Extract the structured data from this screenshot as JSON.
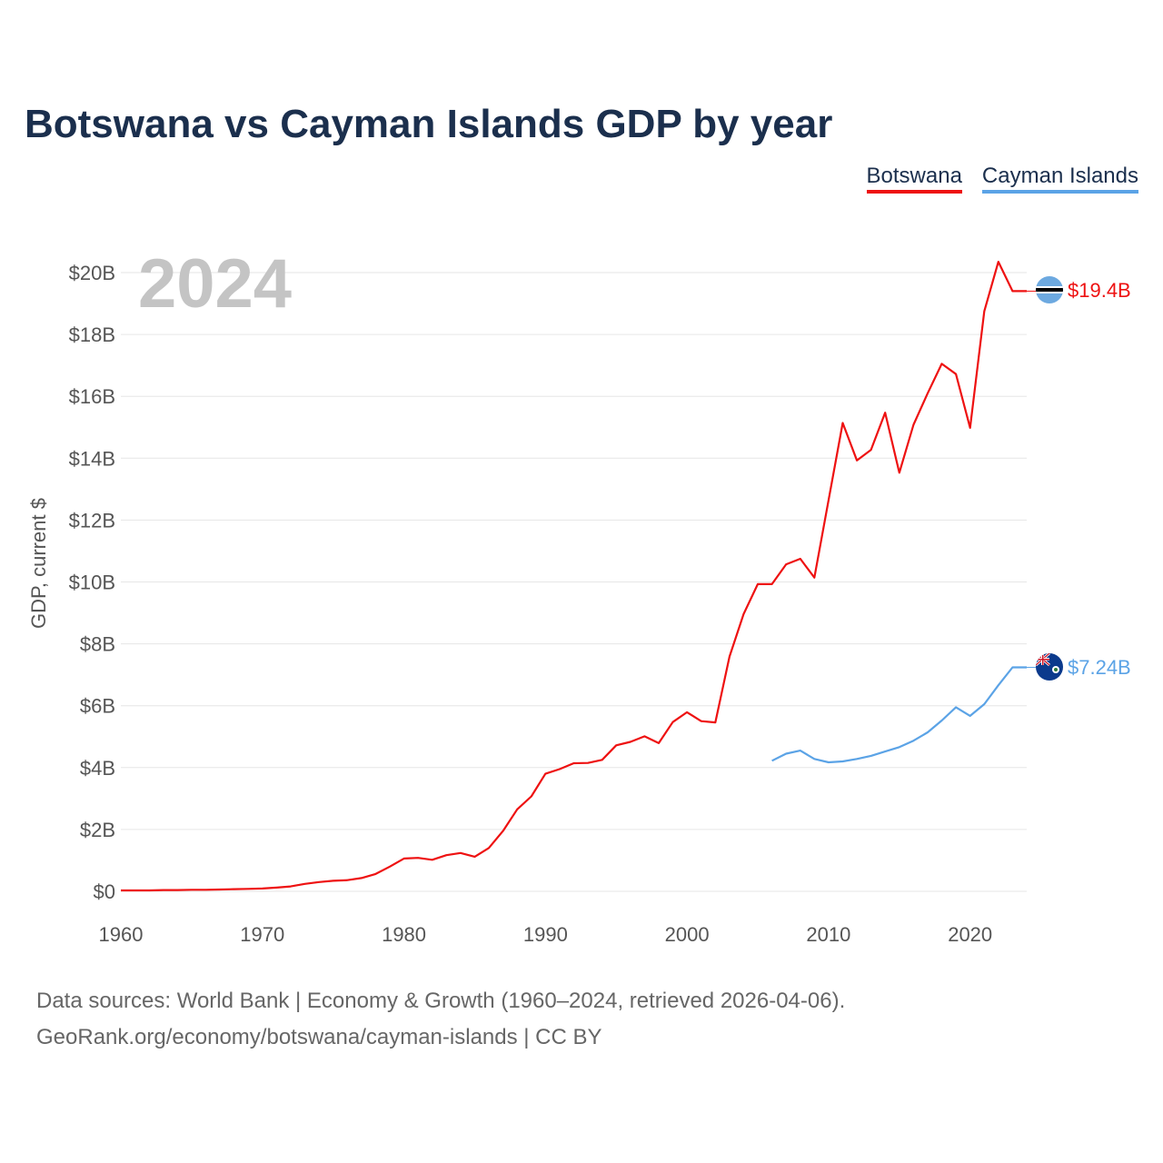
{
  "title": "Botswana vs Cayman Islands GDP by year",
  "legend": [
    "Botswana",
    "Cayman Islands"
  ],
  "year_watermark": "2024",
  "footer": {
    "line1": "Data sources: World Bank | Economy & Growth (1960–2024, retrieved 2026-04-06).",
    "line2": "GeoRank.org/economy/botswana/cayman-islands | CC BY"
  },
  "colors": {
    "botswana": "#ee1111",
    "cayman": "#5ba3e6",
    "title": "#1b2f4d"
  },
  "chart_data": {
    "type": "line",
    "title": "Botswana vs Cayman Islands GDP by year",
    "xlabel": "",
    "ylabel": "GDP, current $",
    "xlim": [
      1960,
      2024
    ],
    "ylim": [
      0,
      20
    ],
    "unit": "billion US$",
    "x_ticks": [
      1960,
      1970,
      1980,
      1990,
      2000,
      2010,
      2020
    ],
    "x_tick_labels": [
      "1960",
      "1970",
      "1980",
      "1990",
      "2000",
      "2010",
      "2020"
    ],
    "y_ticks": [
      0,
      2,
      4,
      6,
      8,
      10,
      12,
      14,
      16,
      18,
      20
    ],
    "y_tick_labels": [
      "$0",
      "$2B",
      "$4B",
      "$6B",
      "$8B",
      "$10B",
      "$12B",
      "$14B",
      "$16B",
      "$18B",
      "$20B"
    ],
    "grid": true,
    "series": [
      {
        "name": "Botswana",
        "color": "#ee1111",
        "end_label": "$19.4B",
        "x": [
          1960,
          1961,
          1962,
          1963,
          1964,
          1965,
          1966,
          1967,
          1968,
          1969,
          1970,
          1971,
          1972,
          1973,
          1974,
          1975,
          1976,
          1977,
          1978,
          1979,
          1980,
          1981,
          1982,
          1983,
          1984,
          1985,
          1986,
          1987,
          1988,
          1989,
          1990,
          1991,
          1992,
          1993,
          1994,
          1995,
          1996,
          1997,
          1998,
          1999,
          2000,
          2001,
          2002,
          2003,
          2004,
          2005,
          2006,
          2007,
          2008,
          2009,
          2010,
          2011,
          2012,
          2013,
          2014,
          2015,
          2016,
          2017,
          2018,
          2019,
          2020,
          2021,
          2022,
          2023,
          2024
        ],
        "values": [
          0.03,
          0.03,
          0.03,
          0.04,
          0.04,
          0.05,
          0.05,
          0.06,
          0.07,
          0.08,
          0.09,
          0.12,
          0.16,
          0.24,
          0.3,
          0.34,
          0.36,
          0.43,
          0.56,
          0.8,
          1.06,
          1.08,
          1.02,
          1.17,
          1.24,
          1.12,
          1.4,
          1.95,
          2.65,
          3.07,
          3.8,
          3.95,
          4.14,
          4.15,
          4.25,
          4.72,
          4.83,
          5.01,
          4.79,
          5.47,
          5.79,
          5.5,
          5.46,
          7.59,
          8.96,
          9.93,
          9.93,
          10.57,
          10.75,
          10.14,
          12.64,
          15.14,
          13.93,
          14.27,
          15.47,
          13.53,
          15.08,
          16.1,
          17.05,
          16.72,
          14.98,
          18.75,
          20.35,
          19.4,
          19.4
        ]
      },
      {
        "name": "Cayman Islands",
        "color": "#5ba3e6",
        "end_label": "$7.24B",
        "x": [
          2006,
          2007,
          2008,
          2009,
          2010,
          2011,
          2012,
          2013,
          2014,
          2015,
          2016,
          2017,
          2018,
          2019,
          2020,
          2021,
          2022,
          2023,
          2024
        ],
        "values": [
          4.22,
          4.45,
          4.55,
          4.28,
          4.17,
          4.2,
          4.28,
          4.38,
          4.52,
          4.66,
          4.87,
          5.14,
          5.52,
          5.95,
          5.67,
          6.05,
          6.66,
          7.24,
          7.24
        ]
      }
    ]
  }
}
